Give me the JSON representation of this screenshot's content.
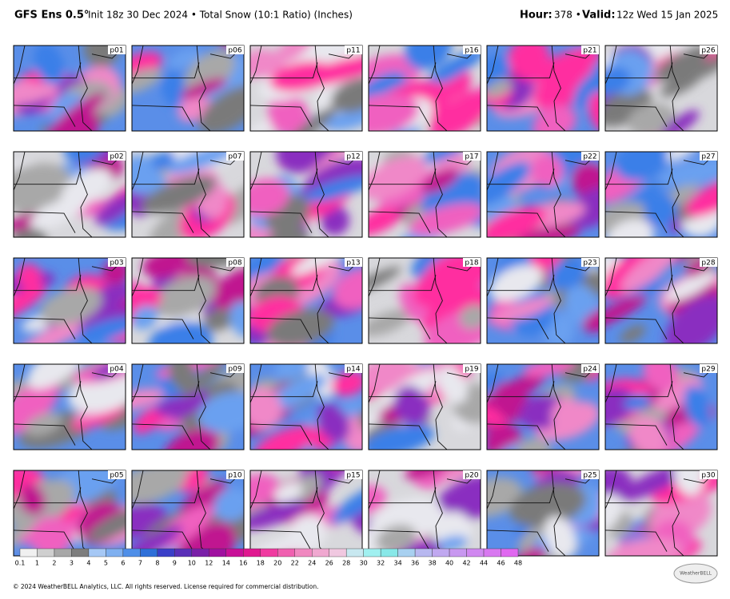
{
  "header": {
    "model": "GFS Ens 0.5°",
    "description": "Init 18z 30 Dec 2024 • Total Snow (10:1 Ratio) (Inches)",
    "hour_label": "Hour:",
    "hour_value": "378 •",
    "valid_label": "Valid:",
    "valid_value": "12z Wed 15 Jan 2025"
  },
  "panels": [
    "p01",
    "p02",
    "p03",
    "p04",
    "p05",
    "p06",
    "p07",
    "p08",
    "p09",
    "p10",
    "p11",
    "p12",
    "p13",
    "p14",
    "p15",
    "p16",
    "p17",
    "p18",
    "p19",
    "p20",
    "p21",
    "p22",
    "p23",
    "p24",
    "p25",
    "p26",
    "p27",
    "p28",
    "p29",
    "p30"
  ],
  "colorbar": {
    "labels": [
      "0.1",
      "1",
      "2",
      "3",
      "4",
      "5",
      "6",
      "7",
      "8",
      "9",
      "10",
      "12",
      "14",
      "16",
      "18",
      "20",
      "22",
      "24",
      "26",
      "28",
      "30",
      "32",
      "34",
      "36",
      "38",
      "40",
      "42",
      "44",
      "46",
      "48"
    ],
    "colors": [
      "#f0f0f0",
      "#cfcfcf",
      "#a8a8a8",
      "#7e7e7e",
      "#a6c8f5",
      "#7fb0f0",
      "#4f8fe8",
      "#2e6fd8",
      "#3a3fc8",
      "#5a2fb8",
      "#7a1fa8",
      "#a010a0",
      "#c81098",
      "#e01890",
      "#f03aa0",
      "#f060b0",
      "#f088c0",
      "#f0a8d0",
      "#f0c8e0",
      "#c8e8f0",
      "#a0f0f0",
      "#88e8e8",
      "#a8d0f0",
      "#b8b8f0",
      "#c0a8f0",
      "#c898f0",
      "#d088f0",
      "#d878f0",
      "#e068f0"
    ]
  },
  "footer": "© 2024 WeatherBELL Analytics, LLC. All rights reserved. License required for commercial distribution.",
  "logo": "WeatherBELL"
}
